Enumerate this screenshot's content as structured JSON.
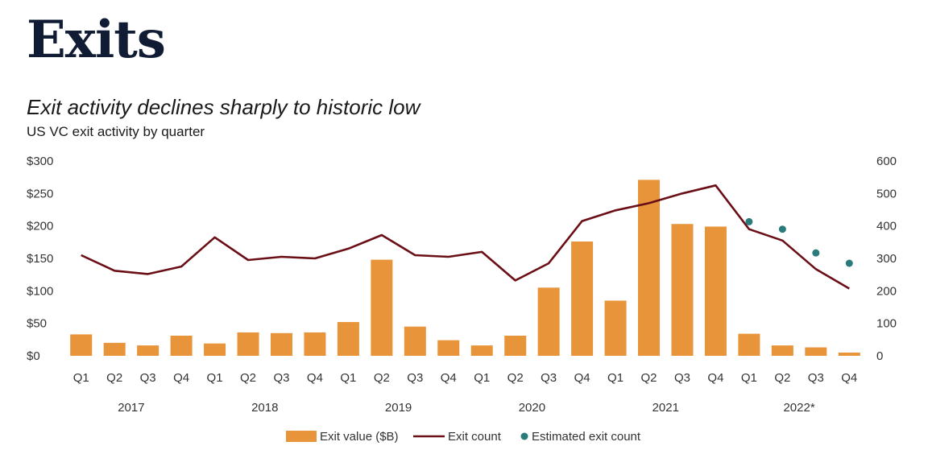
{
  "header": {
    "section": "Exits",
    "title": "Exit activity declines sharply to historic low",
    "subtitle": "US VC exit activity by quarter"
  },
  "colors": {
    "bar": "#e8943a",
    "line": "#6b0f17",
    "dot": "#2a7b7b"
  },
  "chart_data": {
    "type": "bar",
    "categories": [
      "Q1",
      "Q2",
      "Q3",
      "Q4",
      "Q1",
      "Q2",
      "Q3",
      "Q4",
      "Q1",
      "Q2",
      "Q3",
      "Q4",
      "Q1",
      "Q2",
      "Q3",
      "Q4",
      "Q1",
      "Q2",
      "Q3",
      "Q4",
      "Q1",
      "Q2",
      "Q3",
      "Q4"
    ],
    "years": [
      "2017",
      "2018",
      "2019",
      "2020",
      "2021",
      "2022*"
    ],
    "series": [
      {
        "name": "Exit value ($B)",
        "type": "bar",
        "axis": "left",
        "values": [
          33,
          20,
          16,
          31,
          19,
          36,
          35,
          36,
          52,
          148,
          45,
          24,
          16,
          31,
          105,
          176,
          85,
          271,
          203,
          199,
          34,
          16,
          13,
          5
        ]
      },
      {
        "name": "Exit count",
        "type": "line",
        "axis": "right",
        "values": [
          310,
          262,
          252,
          275,
          365,
          295,
          305,
          300,
          330,
          372,
          310,
          305,
          320,
          232,
          285,
          415,
          448,
          470,
          500,
          525,
          390,
          355,
          267,
          207
        ]
      },
      {
        "name": "Estimated exit count",
        "type": "scatter",
        "axis": "right",
        "start_index": 20,
        "values": [
          413,
          390,
          317,
          285
        ]
      }
    ],
    "y_left": {
      "min": 0,
      "max": 300,
      "ticks": [
        "$0",
        "$50",
        "$100",
        "$150",
        "$200",
        "$250",
        "$300"
      ]
    },
    "y_right": {
      "min": 0,
      "max": 600,
      "ticks": [
        "0",
        "100",
        "200",
        "300",
        "400",
        "500",
        "600"
      ]
    },
    "legend_position": "bottom-center",
    "grid": false
  }
}
